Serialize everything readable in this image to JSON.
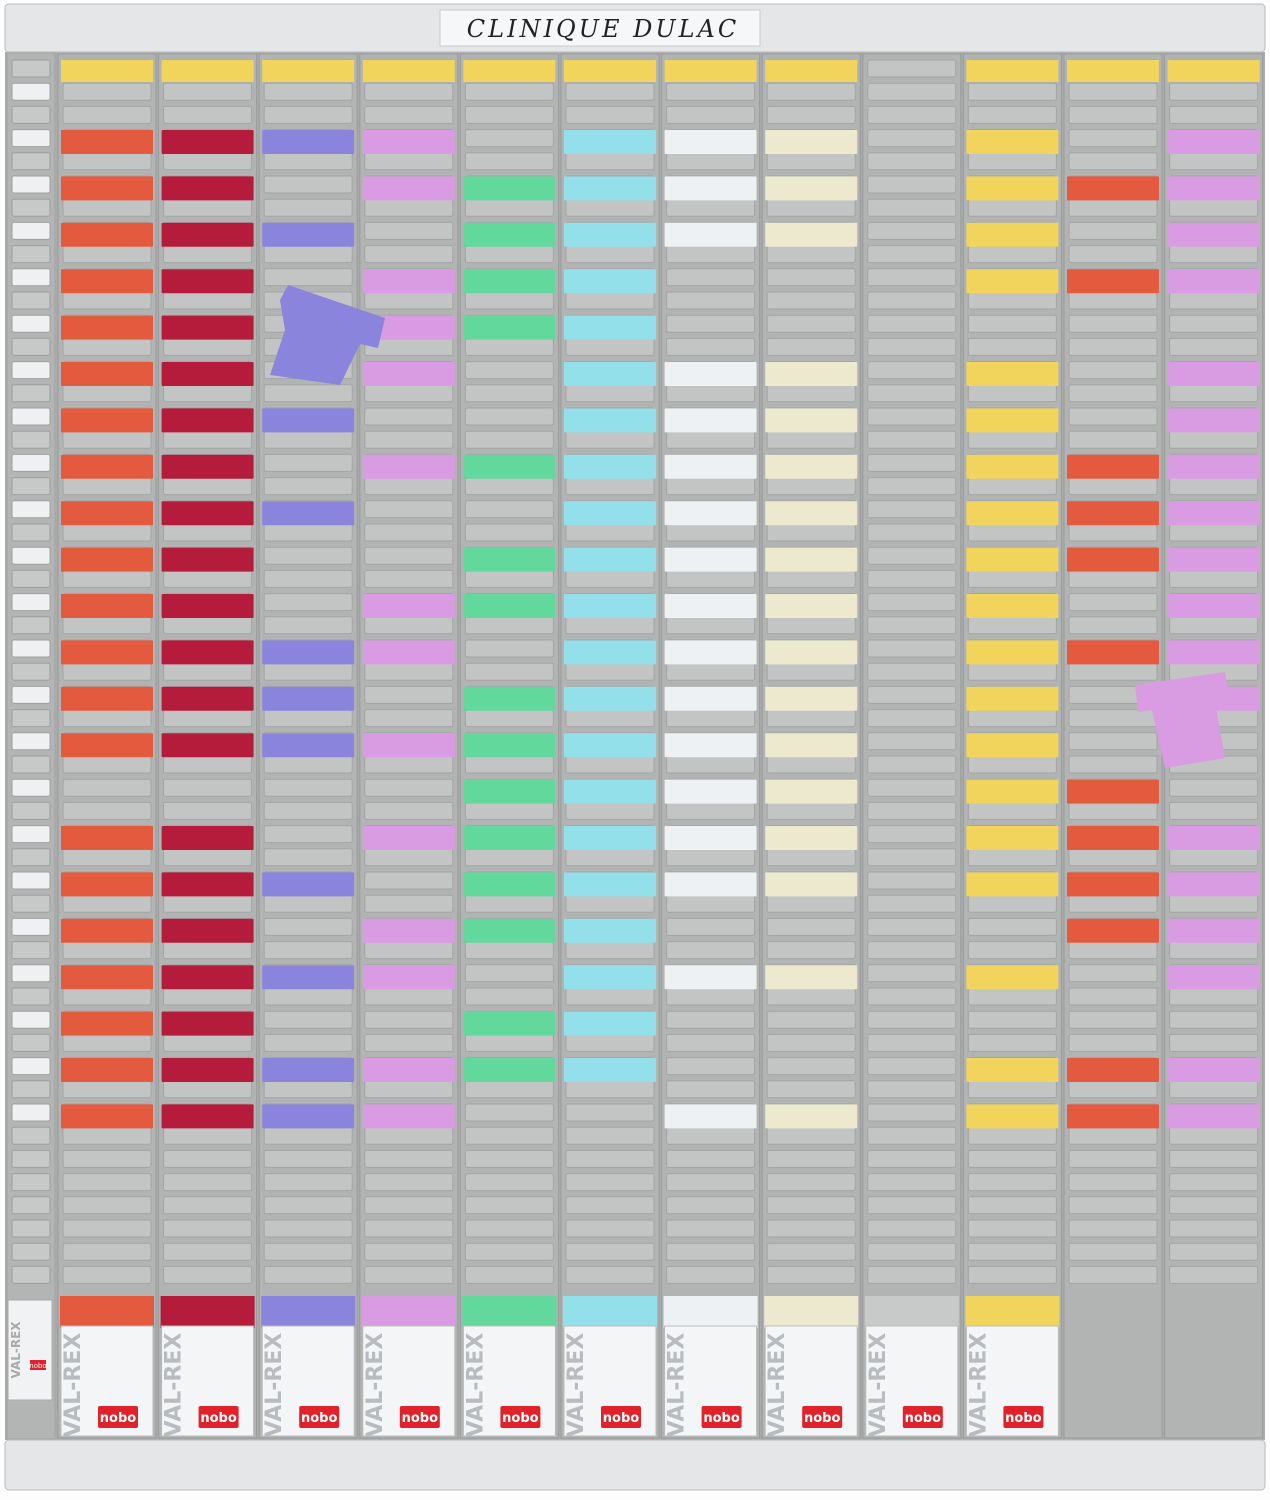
{
  "header": {
    "title": "CLINIQUE DULAC"
  },
  "boxes": [
    {
      "brand": "VAL-REX",
      "logo": "nobo"
    },
    {
      "brand": "VAL-REX",
      "logo": "nobo"
    },
    {
      "brand": "VAL-REX",
      "logo": "nobo"
    },
    {
      "brand": "VAL-REX",
      "logo": "nobo"
    },
    {
      "brand": "VAL-REX",
      "logo": "nobo"
    },
    {
      "brand": "VAL-REX",
      "logo": "nobo"
    },
    {
      "brand": "VAL-REX",
      "logo": "nobo"
    },
    {
      "brand": "VAL-REX",
      "logo": "nobo"
    },
    {
      "brand": "VAL-REX",
      "logo": "nobo"
    },
    {
      "brand": "VAL-REX",
      "logo": "nobo"
    },
    {
      "brand": "VAL-REX",
      "logo": "nobo"
    }
  ]
}
